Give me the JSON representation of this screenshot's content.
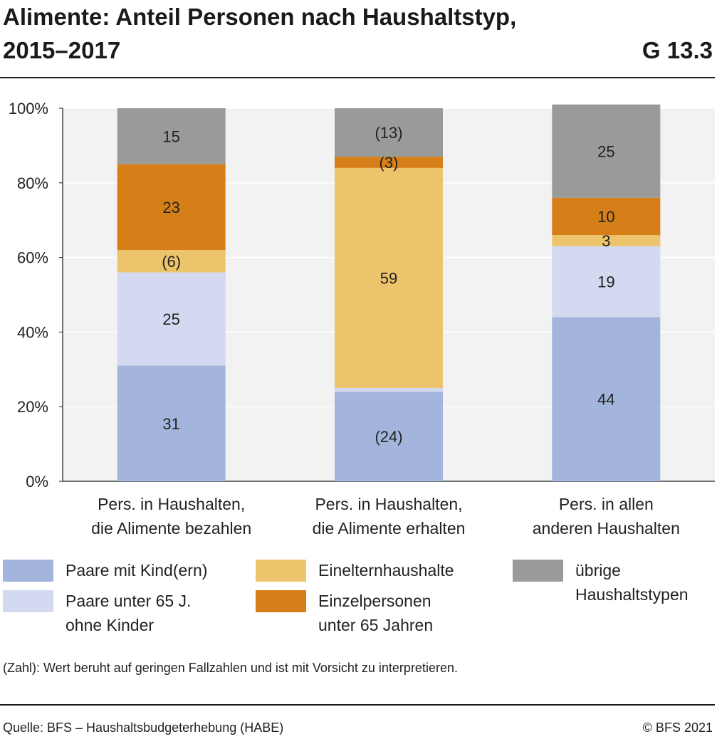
{
  "header": {
    "title_line1": "Alimente: Anteil Personen nach Haushaltstyp,",
    "title_line2": "2015–2017",
    "chart_id": "G 13.3"
  },
  "chart_data": {
    "type": "bar",
    "stacked": true,
    "categories": [
      [
        "Pers. in Haushalten,",
        "die Alimente bezahlen"
      ],
      [
        "Pers. in Haushalten,",
        "die Alimente erhalten"
      ],
      [
        "Pers. in allen",
        "anderen Haushalten"
      ]
    ],
    "series": [
      {
        "name": "Paare mit Kind(ern)",
        "values": [
          31,
          24,
          44
        ],
        "labels": [
          "31",
          "(24)",
          "44"
        ],
        "color": "#a3b5dc"
      },
      {
        "name": "Paare unter 65 J. ohne Kinder",
        "values": [
          25,
          1,
          19
        ],
        "labels": [
          "25",
          "",
          "19"
        ],
        "color": "#d2d9f0"
      },
      {
        "name": "Einelternhaushalte",
        "values": [
          6,
          59,
          3
        ],
        "labels": [
          "(6)",
          "59",
          "3"
        ],
        "color": "#ecc46b"
      },
      {
        "name": "Einzelpersonen unter 65 Jahren",
        "values": [
          23,
          3,
          10
        ],
        "labels": [
          "23",
          "(3)",
          "10"
        ],
        "color": "#d67e17"
      },
      {
        "name": "übrige Haushaltstypen",
        "values": [
          15,
          13,
          25
        ],
        "labels": [
          "15",
          "(13)",
          "25"
        ],
        "color": "#999b99"
      }
    ],
    "ylim": [
      0,
      100
    ],
    "yticks": [
      "0%",
      "20%",
      "40%",
      "60%",
      "80%",
      "100%"
    ],
    "ytick_values": [
      0,
      20,
      40,
      60,
      80,
      100
    ],
    "grid": true,
    "plot_background": "#f2f2f2",
    "legend_position": "bottom"
  },
  "legend": {
    "paare_kind": [
      "Paare mit Kind(ern)"
    ],
    "paare_ohne": [
      "Paare unter 65 J.",
      "ohne Kinder"
    ],
    "eineltern": [
      "Einelternhaushalte"
    ],
    "einzel": [
      "Einzelpersonen",
      "unter 65 Jahren"
    ],
    "uebrige": [
      "übrige",
      "Haushaltstypen"
    ]
  },
  "footer": {
    "note": "(Zahl): Wert beruht auf geringen Fallzahlen und ist mit Vorsicht zu interpretieren.",
    "source": "Quelle: BFS – Haushaltsbudgeterhebung (HABE)",
    "copyright": "© BFS 2021"
  }
}
